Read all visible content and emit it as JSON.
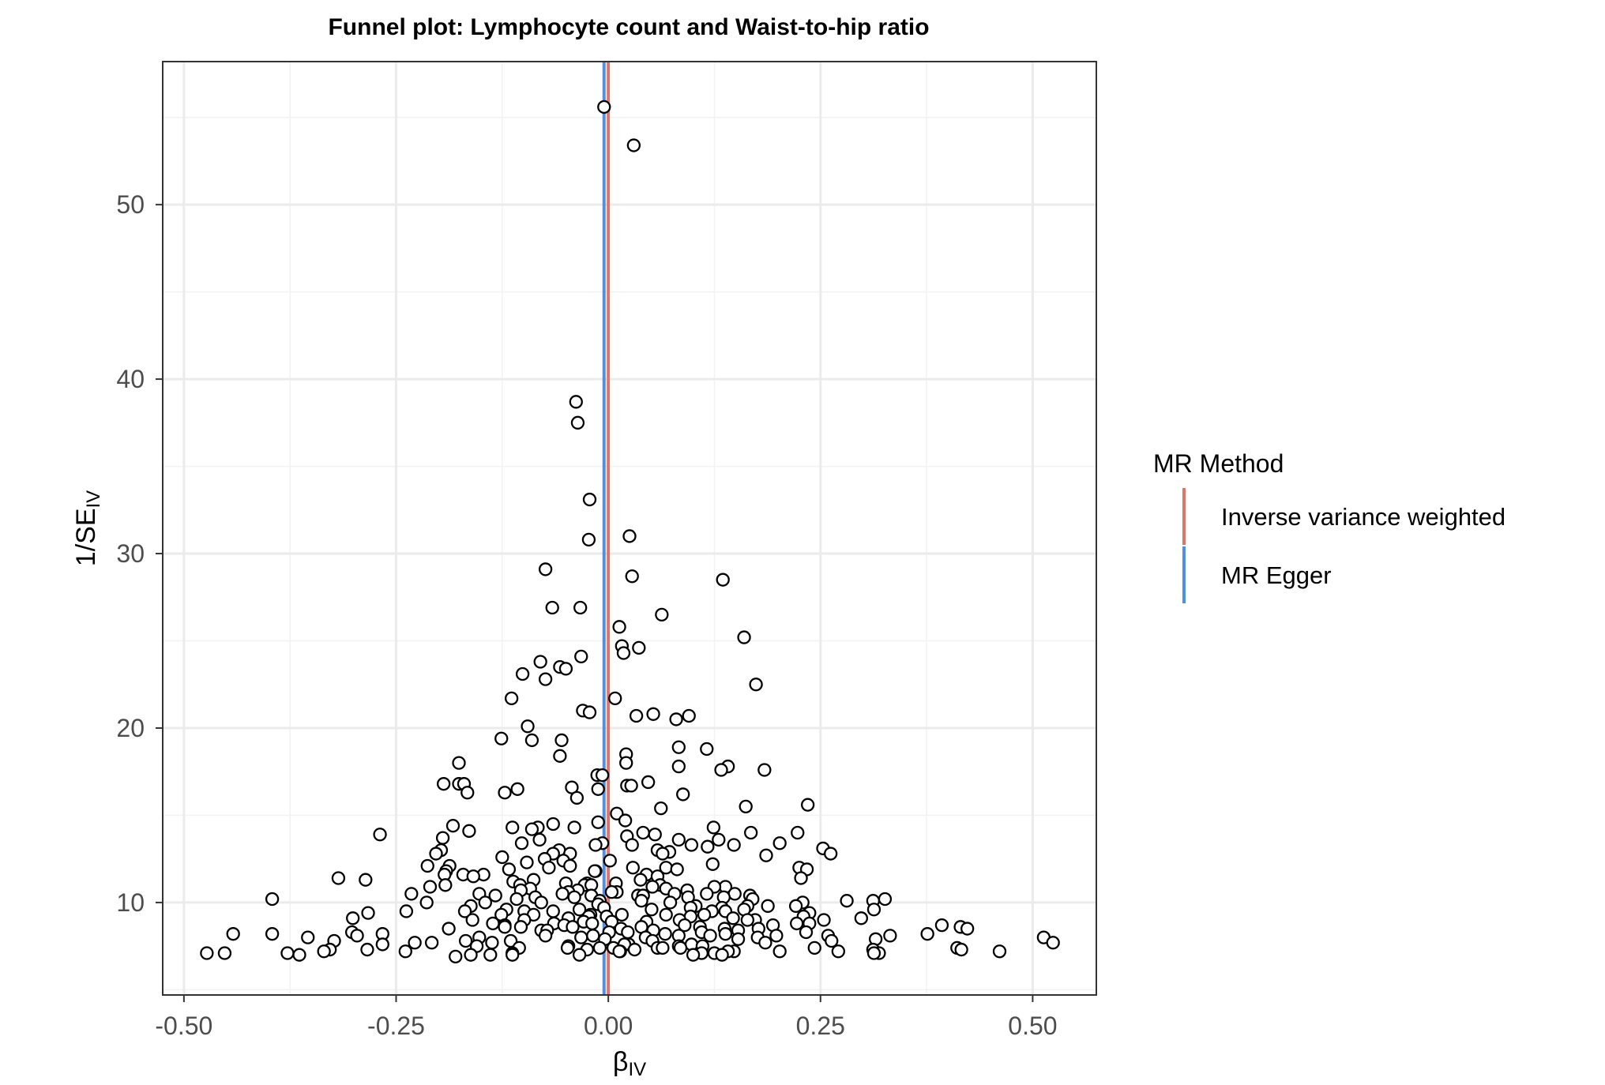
{
  "chart_data": {
    "type": "scatter",
    "title": "Funnel plot: Lymphocyte count and Waist-to-hip ratio",
    "xlabel": {
      "base": "β",
      "sub": "IV"
    },
    "ylabel": {
      "base": "1/SE",
      "sub": "IV"
    },
    "xlim": [
      -0.525,
      0.575
    ],
    "ylim": [
      4.7,
      58.2
    ],
    "x_ticks": [
      -0.5,
      -0.25,
      0.0,
      0.25,
      0.5
    ],
    "x_tick_labels": [
      "-0.50",
      "-0.25",
      "0.00",
      "0.25",
      "0.50"
    ],
    "y_ticks": [
      10,
      20,
      30,
      40,
      50
    ],
    "y_tick_labels": [
      "10",
      "20",
      "30",
      "40",
      "50"
    ],
    "grid": true,
    "legend": {
      "title": "MR Method",
      "placement": "right",
      "items": [
        {
          "label": "Inverse variance weighted",
          "color": "#E0736A"
        },
        {
          "label": "MR Egger",
          "color": "#4D8FEA"
        }
      ]
    },
    "reference_lines": [
      {
        "method": "Inverse variance weighted",
        "x": 0.0,
        "color": "#E0736A"
      },
      {
        "method": "MR Egger",
        "x": -0.005,
        "color": "#4D8FEA"
      }
    ],
    "marker": {
      "fill": "#ffffff",
      "stroke": "#000000"
    },
    "points": [
      [
        -0.005,
        55.6
      ],
      [
        0.03,
        53.4
      ],
      [
        -0.038,
        38.7
      ],
      [
        -0.036,
        37.5
      ],
      [
        -0.022,
        33.1
      ],
      [
        -0.023,
        30.8
      ],
      [
        0.025,
        31.0
      ],
      [
        -0.074,
        29.1
      ],
      [
        0.028,
        28.7
      ],
      [
        0.135,
        28.5
      ],
      [
        -0.066,
        26.9
      ],
      [
        -0.033,
        26.9
      ],
      [
        0.063,
        26.5
      ],
      [
        0.013,
        25.8
      ],
      [
        0.16,
        25.2
      ],
      [
        0.016,
        24.7
      ],
      [
        0.036,
        24.6
      ],
      [
        0.018,
        24.3
      ],
      [
        -0.032,
        24.1
      ],
      [
        -0.08,
        23.8
      ],
      [
        -0.057,
        23.5
      ],
      [
        -0.05,
        23.4
      ],
      [
        -0.101,
        23.1
      ],
      [
        -0.074,
        22.8
      ],
      [
        0.174,
        22.5
      ],
      [
        -0.114,
        21.7
      ],
      [
        0.008,
        21.7
      ],
      [
        -0.03,
        21.0
      ],
      [
        -0.022,
        20.9
      ],
      [
        0.053,
        20.8
      ],
      [
        0.095,
        20.7
      ],
      [
        0.033,
        20.7
      ],
      [
        0.08,
        20.5
      ],
      [
        -0.095,
        20.1
      ],
      [
        -0.126,
        19.4
      ],
      [
        -0.09,
        19.3
      ],
      [
        -0.055,
        19.3
      ],
      [
        0.083,
        18.9
      ],
      [
        0.116,
        18.8
      ],
      [
        0.021,
        18.5
      ],
      [
        -0.057,
        18.4
      ],
      [
        -0.176,
        18.0
      ],
      [
        0.021,
        18.0
      ],
      [
        0.141,
        17.8
      ],
      [
        0.083,
        17.8
      ],
      [
        0.133,
        17.6
      ],
      [
        0.184,
        17.6
      ],
      [
        -0.013,
        17.3
      ],
      [
        -0.007,
        17.3
      ],
      [
        0.047,
        16.9
      ],
      [
        -0.194,
        16.8
      ],
      [
        -0.176,
        16.8
      ],
      [
        -0.17,
        16.8
      ],
      [
        0.022,
        16.7
      ],
      [
        0.027,
        16.7
      ],
      [
        -0.043,
        16.6
      ],
      [
        -0.107,
        16.5
      ],
      [
        -0.012,
        16.5
      ],
      [
        -0.166,
        16.3
      ],
      [
        -0.122,
        16.3
      ],
      [
        0.088,
        16.2
      ],
      [
        -0.037,
        16.0
      ],
      [
        0.235,
        15.6
      ],
      [
        0.162,
        15.5
      ],
      [
        0.062,
        15.4
      ],
      [
        0.01,
        15.1
      ],
      [
        0.02,
        14.7
      ],
      [
        -0.012,
        14.6
      ],
      [
        -0.065,
        14.5
      ],
      [
        -0.183,
        14.4
      ],
      [
        0.124,
        14.3
      ],
      [
        -0.113,
        14.3
      ],
      [
        -0.083,
        14.3
      ],
      [
        -0.04,
        14.3
      ],
      [
        -0.09,
        14.2
      ],
      [
        -0.164,
        14.1
      ],
      [
        0.041,
        14.0
      ],
      [
        0.168,
        14.0
      ],
      [
        0.223,
        14.0
      ],
      [
        0.055,
        13.9
      ],
      [
        -0.269,
        13.9
      ],
      [
        0.022,
        13.8
      ],
      [
        -0.195,
        13.7
      ],
      [
        0.13,
        13.6
      ],
      [
        -0.081,
        13.6
      ],
      [
        0.083,
        13.6
      ],
      [
        0.202,
        13.4
      ],
      [
        -0.102,
        13.4
      ],
      [
        -0.007,
        13.4
      ],
      [
        -0.015,
        13.3
      ],
      [
        0.148,
        13.3
      ],
      [
        0.098,
        13.3
      ],
      [
        0.028,
        13.3
      ],
      [
        0.117,
        13.2
      ],
      [
        0.253,
        13.1
      ],
      [
        -0.058,
        13.0
      ],
      [
        0.058,
        13.0
      ],
      [
        -0.197,
        13.0
      ],
      [
        0.072,
        12.9
      ],
      [
        -0.203,
        12.8
      ],
      [
        -0.065,
        12.8
      ],
      [
        0.064,
        12.8
      ],
      [
        0.262,
        12.8
      ],
      [
        -0.045,
        12.8
      ],
      [
        0.186,
        12.7
      ],
      [
        -0.125,
        12.6
      ],
      [
        -0.075,
        12.5
      ],
      [
        -0.053,
        12.4
      ],
      [
        0.002,
        12.4
      ],
      [
        -0.096,
        12.3
      ],
      [
        0.123,
        12.2
      ],
      [
        -0.213,
        12.1
      ],
      [
        -0.187,
        12.1
      ],
      [
        -0.045,
        12.1
      ],
      [
        0.068,
        12.0
      ],
      [
        0.029,
        12.0
      ],
      [
        0.225,
        12.0
      ],
      [
        -0.07,
        12.0
      ],
      [
        0.081,
        11.9
      ],
      [
        0.234,
        11.9
      ],
      [
        -0.117,
        11.9
      ],
      [
        -0.191,
        11.8
      ],
      [
        -0.015,
        11.8
      ],
      [
        -0.016,
        11.8
      ],
      [
        0.045,
        11.6
      ],
      [
        -0.193,
        11.6
      ],
      [
        -0.171,
        11.6
      ],
      [
        -0.147,
        11.6
      ],
      [
        0.058,
        11.5
      ],
      [
        -0.159,
        11.5
      ],
      [
        -0.318,
        11.4
      ],
      [
        0.227,
        11.4
      ],
      [
        -0.286,
        11.3
      ],
      [
        -0.088,
        11.3
      ],
      [
        0.038,
        11.3
      ],
      [
        -0.112,
        11.2
      ],
      [
        -0.05,
        11.1
      ],
      [
        0.009,
        11.1
      ],
      [
        -0.025,
        11.1
      ],
      [
        0.061,
        11.0
      ],
      [
        -0.192,
        11.0
      ],
      [
        -0.104,
        11.0
      ],
      [
        -0.028,
        11.0
      ],
      [
        -0.02,
        11.0
      ],
      [
        0.138,
        10.9
      ],
      [
        -0.21,
        10.9
      ],
      [
        0.052,
        10.9
      ],
      [
        0.125,
        10.9
      ],
      [
        -0.092,
        10.8
      ],
      [
        0.068,
        10.8
      ],
      [
        -0.103,
        10.7
      ],
      [
        -0.036,
        10.7
      ],
      [
        0.093,
        10.7
      ],
      [
        0.01,
        10.6
      ],
      [
        -0.047,
        10.6
      ],
      [
        0.004,
        10.6
      ],
      [
        0.149,
        10.5
      ],
      [
        0.116,
        10.5
      ],
      [
        -0.232,
        10.5
      ],
      [
        -0.152,
        10.5
      ],
      [
        0.078,
        10.5
      ],
      [
        -0.054,
        10.5
      ],
      [
        -0.133,
        10.4
      ],
      [
        0.035,
        10.4
      ],
      [
        0.041,
        10.4
      ],
      [
        -0.02,
        10.4
      ],
      [
        0.167,
        10.4
      ],
      [
        -0.086,
        10.3
      ],
      [
        0.094,
        10.3
      ],
      [
        0.136,
        10.3
      ],
      [
        -0.04,
        10.3
      ],
      [
        -0.108,
        10.2
      ],
      [
        0.17,
        10.2
      ],
      [
        -0.396,
        10.2
      ],
      [
        0.326,
        10.2
      ],
      [
        0.281,
        10.1
      ],
      [
        -0.01,
        10.1
      ],
      [
        0.039,
        10.1
      ],
      [
        0.312,
        10.1
      ],
      [
        0.229,
        10.0
      ],
      [
        -0.214,
        10.0
      ],
      [
        -0.145,
        10.0
      ],
      [
        -0.079,
        10.0
      ],
      [
        0.073,
        10.0
      ],
      [
        -0.012,
        9.9
      ],
      [
        0.221,
        9.8
      ],
      [
        0.103,
        9.8
      ],
      [
        0.164,
        9.8
      ],
      [
        -0.162,
        9.8
      ],
      [
        0.188,
        9.8
      ],
      [
        0.134,
        9.7
      ],
      [
        -0.005,
        9.7
      ],
      [
        0.097,
        9.7
      ],
      [
        0.051,
        9.6
      ],
      [
        -0.12,
        9.6
      ],
      [
        0.313,
        9.6
      ],
      [
        -0.034,
        9.6
      ],
      [
        0.16,
        9.6
      ],
      [
        -0.169,
        9.5
      ],
      [
        -0.099,
        9.5
      ],
      [
        0.122,
        9.5
      ],
      [
        -0.238,
        9.5
      ],
      [
        0.138,
        9.5
      ],
      [
        -0.065,
        9.5
      ],
      [
        0.237,
        9.4
      ],
      [
        -0.283,
        9.4
      ],
      [
        0.016,
        9.3
      ],
      [
        -0.126,
        9.3
      ],
      [
        0.068,
        9.3
      ],
      [
        -0.088,
        9.3
      ],
      [
        -0.021,
        9.3
      ],
      [
        0.113,
        9.3
      ],
      [
        0.097,
        9.2
      ],
      [
        -0.023,
        9.2
      ],
      [
        0.23,
        9.2
      ],
      [
        -0.002,
        9.2
      ],
      [
        0.298,
        9.1
      ],
      [
        -0.047,
        9.1
      ],
      [
        -0.301,
        9.1
      ],
      [
        0.147,
        9.1
      ],
      [
        0.084,
        9.0
      ],
      [
        0.173,
        9.0
      ],
      [
        -0.16,
        9.0
      ],
      [
        0.254,
        9.0
      ],
      [
        0.164,
        9.0
      ],
      [
        -0.099,
        9.0
      ],
      [
        -0.029,
        8.9
      ],
      [
        0.045,
        8.9
      ],
      [
        0.004,
        8.9
      ],
      [
        0.237,
        8.8
      ],
      [
        -0.064,
        8.8
      ],
      [
        0.222,
        8.8
      ],
      [
        -0.136,
        8.8
      ],
      [
        -0.019,
        8.8
      ],
      [
        0.09,
        8.7
      ],
      [
        -0.052,
        8.7
      ],
      [
        0.393,
        8.7
      ],
      [
        -0.122,
        8.7
      ],
      [
        0.194,
        8.7
      ],
      [
        -0.042,
        8.6
      ],
      [
        -0.122,
        8.6
      ],
      [
        0.039,
        8.6
      ],
      [
        0.415,
        8.6
      ],
      [
        0.108,
        8.6
      ],
      [
        -0.103,
        8.6
      ],
      [
        0.423,
        8.5
      ],
      [
        0.137,
        8.5
      ],
      [
        -0.188,
        8.5
      ],
      [
        0.177,
        8.5
      ],
      [
        0.015,
        8.5
      ],
      [
        -0.079,
        8.4
      ],
      [
        0.053,
        8.4
      ],
      [
        -0.072,
        8.4
      ],
      [
        0.153,
        8.4
      ],
      [
        0.11,
        8.3
      ],
      [
        -0.302,
        8.3
      ],
      [
        0.233,
        8.3
      ],
      [
        0.001,
        8.3
      ],
      [
        0.023,
        8.3
      ],
      [
        -0.266,
        8.2
      ],
      [
        -0.396,
        8.2
      ],
      [
        0.376,
        8.2
      ],
      [
        -0.442,
        8.2
      ],
      [
        0.138,
        8.2
      ],
      [
        0.067,
        8.2
      ],
      [
        0.198,
        8.1
      ],
      [
        0.083,
        8.1
      ],
      [
        0.332,
        8.1
      ],
      [
        -0.018,
        8.1
      ],
      [
        -0.296,
        8.1
      ],
      [
        -0.074,
        8.1
      ],
      [
        0.259,
        8.1
      ],
      [
        0.12,
        8.1
      ],
      [
        -0.032,
        8.0
      ],
      [
        -0.354,
        8.0
      ],
      [
        0.513,
        8.0
      ],
      [
        -0.152,
        8.0
      ],
      [
        0.176,
        8.0
      ],
      [
        0.044,
        8.0
      ],
      [
        0.153,
        7.9
      ],
      [
        -0.004,
        7.9
      ],
      [
        0.315,
        7.9
      ],
      [
        -0.323,
        7.8
      ],
      [
        0.263,
        7.8
      ],
      [
        -0.168,
        7.8
      ],
      [
        -0.115,
        7.8
      ],
      [
        0.052,
        7.8
      ],
      [
        -0.208,
        7.7
      ],
      [
        0.524,
        7.7
      ],
      [
        0.185,
        7.7
      ],
      [
        -0.137,
        7.7
      ],
      [
        -0.228,
        7.7
      ],
      [
        -0.266,
        7.6
      ],
      [
        0.098,
        7.6
      ],
      [
        0.024,
        7.6
      ],
      [
        0.019,
        7.6
      ],
      [
        -0.047,
        7.5
      ],
      [
        -0.155,
        7.5
      ],
      [
        0.111,
        7.5
      ],
      [
        0.083,
        7.5
      ],
      [
        -0.105,
        7.4
      ],
      [
        0.243,
        7.4
      ],
      [
        0.085,
        7.4
      ],
      [
        0.006,
        7.4
      ],
      [
        -0.01,
        7.4
      ],
      [
        0.058,
        7.4
      ],
      [
        0.064,
        7.4
      ],
      [
        0.411,
        7.4
      ],
      [
        -0.048,
        7.4
      ],
      [
        0.416,
        7.3
      ],
      [
        -0.025,
        7.3
      ],
      [
        -0.284,
        7.3
      ],
      [
        0.031,
        7.3
      ],
      [
        -0.328,
        7.3
      ],
      [
        0.312,
        7.3
      ],
      [
        0.271,
        7.2
      ],
      [
        0.148,
        7.2
      ],
      [
        -0.239,
        7.2
      ],
      [
        0.461,
        7.2
      ],
      [
        0.202,
        7.2
      ],
      [
        -0.335,
        7.2
      ],
      [
        0.014,
        7.2
      ],
      [
        0.013,
        7.2
      ],
      [
        0.141,
        7.2
      ],
      [
        -0.452,
        7.1
      ],
      [
        -0.378,
        7.1
      ],
      [
        0.11,
        7.1
      ],
      [
        0.125,
        7.1
      ],
      [
        -0.113,
        7.1
      ],
      [
        0.319,
        7.1
      ],
      [
        -0.473,
        7.1
      ],
      [
        0.313,
        7.1
      ],
      [
        -0.113,
        7.0
      ],
      [
        -0.139,
        7.0
      ],
      [
        -0.162,
        7.0
      ],
      [
        0.1,
        7.0
      ],
      [
        0.134,
        7.0
      ],
      [
        -0.034,
        7.0
      ],
      [
        -0.364,
        7.0
      ],
      [
        -0.18,
        6.9
      ]
    ]
  }
}
